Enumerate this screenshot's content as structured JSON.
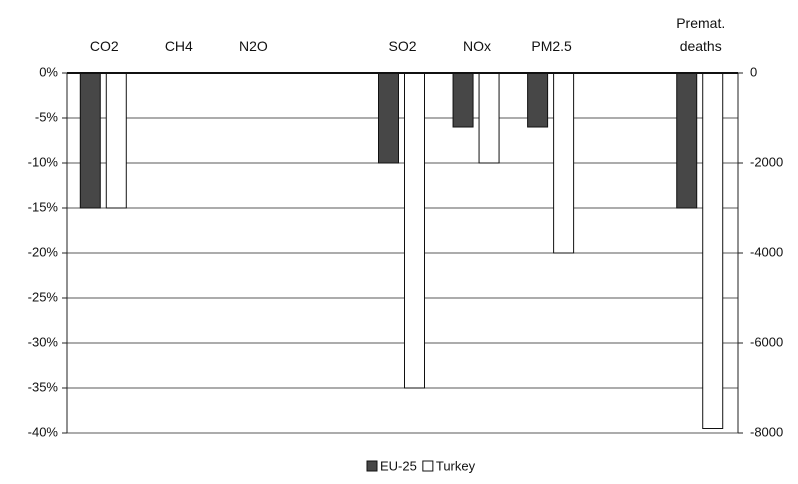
{
  "chart_data": {
    "type": "bar",
    "categories": [
      "CO2",
      "CH4",
      "N2O",
      null,
      "SO2",
      "NOx",
      "PM2.5",
      null,
      "Premat. deaths"
    ],
    "series": [
      {
        "name": "EU-25",
        "color": "#474747",
        "values": [
          -15,
          null,
          null,
          null,
          -10,
          -6,
          -6,
          null,
          null
        ],
        "y2_values": [
          null,
          null,
          null,
          null,
          null,
          null,
          null,
          null,
          -3000
        ]
      },
      {
        "name": "Turkey",
        "color": "#ffffff",
        "values": [
          -15,
          null,
          null,
          null,
          -35,
          -10,
          -20,
          null,
          null
        ],
        "y2_values": [
          null,
          null,
          null,
          null,
          null,
          null,
          null,
          null,
          -7900
        ]
      }
    ],
    "ylim": [
      -40,
      0
    ],
    "yticks": [
      {
        "value": 0,
        "label": "0%"
      },
      {
        "value": -5,
        "label": "-5%"
      },
      {
        "value": -10,
        "label": "-10%"
      },
      {
        "value": -15,
        "label": "-15%"
      },
      {
        "value": -20,
        "label": "-20%"
      },
      {
        "value": -25,
        "label": "-25%"
      },
      {
        "value": -30,
        "label": "-30%"
      },
      {
        "value": -35,
        "label": "-35%"
      },
      {
        "value": -40,
        "label": "-40%"
      }
    ],
    "y2lim": [
      -8000,
      0
    ],
    "y2ticks": [
      0,
      -2000,
      -4000,
      -6000,
      -8000
    ],
    "grid": true,
    "legend": "bottom"
  }
}
